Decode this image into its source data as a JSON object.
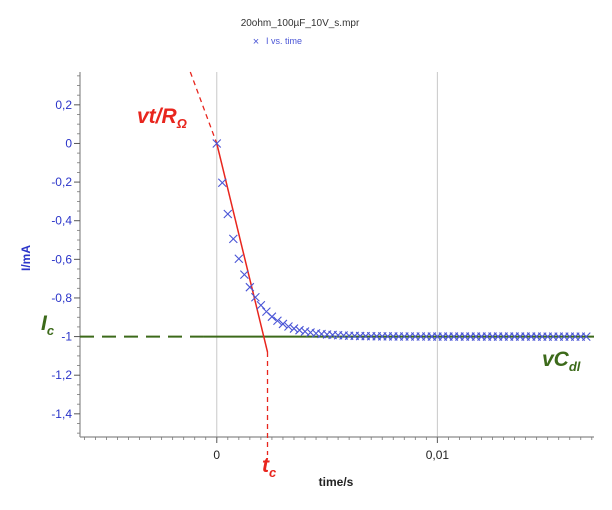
{
  "chart_data": {
    "type": "scatter",
    "title": "20ohm_100µF_10V_s.mpr",
    "legend": {
      "marker": "×",
      "label": "I vs. time",
      "placement": "top-center"
    },
    "xlabel": "time/s",
    "ylabel": "I/mA",
    "xlim": [
      -0.0062,
      0.0171
    ],
    "ylim": [
      -1.52,
      0.37
    ],
    "grid": {
      "major_x": true,
      "major_y": false
    },
    "x_ticks": [
      {
        "value": 0,
        "label": "0"
      },
      {
        "value": 0.01,
        "label": "0,01"
      }
    ],
    "y_ticks": [
      {
        "value": 0.2,
        "label": "0,2"
      },
      {
        "value": 0,
        "label": "0"
      },
      {
        "value": -0.2,
        "label": "-0,2"
      },
      {
        "value": -0.4,
        "label": "-0,4"
      },
      {
        "value": -0.6,
        "label": "-0,6"
      },
      {
        "value": -0.8,
        "label": "-0,8"
      },
      {
        "value": -1.0,
        "label": "-1"
      },
      {
        "value": -1.2,
        "label": "-1,2"
      },
      {
        "value": -1.4,
        "label": "-1,4"
      }
    ],
    "series": [
      {
        "name": "I vs. time",
        "marker": "x",
        "color": "#4a55d6",
        "model": {
          "type": "exp_decay",
          "i_inf": -1.0,
          "tau_s": 0.0011
        },
        "x_start": 0,
        "x_step": 0.00025,
        "n_points": 68
      }
    ],
    "annotations": {
      "tangent_line": {
        "from": [
          -0.0012,
          0.37
        ],
        "to": [
          0.0023,
          -1.08
        ],
        "color": "#e8251d"
      },
      "limit_line": {
        "y": -1.0,
        "x_from": -0.0062,
        "x_to": 0.0171,
        "color": "#3c6a1a"
      },
      "tc_marker": {
        "x": 0.0023,
        "y_from": -1.08,
        "color": "#e8251d"
      },
      "labels": {
        "tangent_label": {
          "main": "vt/R",
          "sub": "Ω",
          "color": "#e8251d"
        },
        "ic_label": {
          "main": "I",
          "sub": "c",
          "color": "#3c6a1a"
        },
        "cdl_label": {
          "main": "vC",
          "sub": "dl",
          "color": "#3c6a1a"
        },
        "tc_label": {
          "main": "t",
          "sub": "c",
          "color": "#e8251d"
        }
      }
    }
  }
}
